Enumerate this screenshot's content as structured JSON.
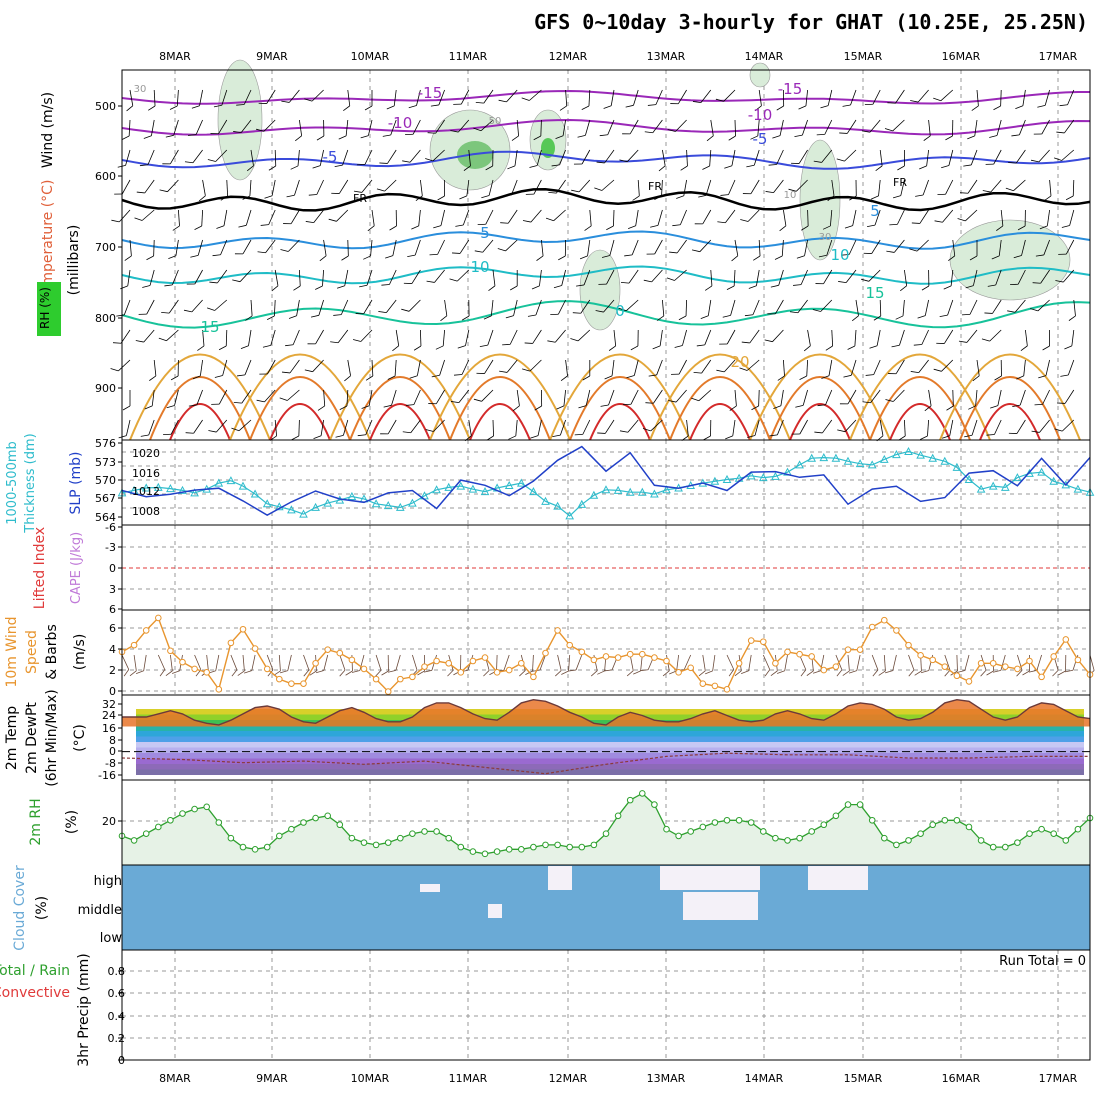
{
  "title": "GFS 0~10day 3-hourly for GHAT (10.25E, 25.25N)",
  "dates": [
    "8MAR",
    "9MAR",
    "10MAR",
    "11MAR",
    "12MAR",
    "13MAR",
    "14MAR",
    "15MAR",
    "16MAR",
    "17MAR"
  ],
  "colors": {
    "rh": "#2ea02e",
    "temp": "#e0603a",
    "wind": "#000000",
    "mb": "#3b3bd6",
    "thick": "#2fbccc",
    "slp": "#2140c8",
    "li": "#e03a3a",
    "cape": "#c07ad8",
    "speed": "#e8952e",
    "cloud": "#6aaad6",
    "precip_total": "#2ea02e",
    "precip_conv": "#e03a3a"
  },
  "panels": {
    "sounding": {
      "label_rh": "RH (%)",
      "label_temp": "Temperature (°C)",
      "label_wind": "Wind (m/s)",
      "label_mb": "(millibars)",
      "fr_label": "FR",
      "yticks": [
        "500",
        "600",
        "700",
        "800",
        "900"
      ],
      "contour_labels": [
        "-15",
        "-10",
        "-5",
        "5",
        "10",
        "15",
        "20",
        "0",
        "-15",
        "-10",
        "-5",
        "5",
        "10",
        "15",
        "30",
        "30",
        "50",
        "10"
      ]
    },
    "thickness": {
      "label_thick": "1000-500mb",
      "label_thick2": "Thickness (dm)",
      "label_slp": "SLP (mb)",
      "yticks_left": [
        "576",
        "573",
        "570",
        "567",
        "564"
      ],
      "yticks_right": [
        "1020",
        "1016",
        "1012",
        "1008"
      ]
    },
    "lifted": {
      "label_li": "Lifted Index",
      "label_cape": "CAPE (J/kg)",
      "yticks": [
        "-6",
        "-3",
        "0",
        "3",
        "6"
      ]
    },
    "wind10": {
      "label1": "10m Wind",
      "label2": "Speed",
      "label3": "& Barbs",
      "unit": "(m/s)",
      "yticks": [
        "6",
        "4",
        "2",
        "0"
      ]
    },
    "temp2m": {
      "label1": "2m Temp",
      "label2": "2m DewPt",
      "label3": "(6hr Min/Max)",
      "unit": "(°C)",
      "yticks": [
        "32",
        "24",
        "16",
        "8",
        "0",
        "-8",
        "-16"
      ]
    },
    "rh2m": {
      "label": "2m RH",
      "unit": "(%)",
      "yticks": [
        "20"
      ]
    },
    "cloud": {
      "label": "Cloud Cover",
      "unit": "(%)",
      "yticks": [
        "high",
        "middle",
        "low"
      ]
    },
    "precip": {
      "label_total": "Total / Rain",
      "label_conv": "Convective",
      "label_axis": "3hr Precip (mm)",
      "run_total": "Run Total = 0",
      "yticks": [
        "0.8",
        "0.6",
        "0.4",
        "0.2",
        "0"
      ]
    }
  },
  "chart_data": [
    {
      "type": "line",
      "name": "1000-500mb Thickness (dm)",
      "x": [
        0,
        1,
        2,
        3,
        4,
        5,
        6,
        7,
        8,
        9,
        10,
        11,
        12,
        13,
        14,
        15,
        16,
        17,
        18,
        19,
        20,
        21,
        22,
        23,
        24,
        25,
        26,
        27,
        28,
        29,
        30,
        31,
        32,
        33,
        34,
        35,
        36,
        37,
        38,
        39,
        40,
        41,
        42,
        43,
        44,
        45,
        46,
        47,
        48,
        49,
        50,
        51,
        52,
        53,
        54,
        55,
        56,
        57,
        58,
        59,
        60,
        61,
        62,
        63,
        64,
        65,
        66,
        67,
        68,
        69,
        70,
        71,
        72,
        73,
        74,
        75,
        76,
        77,
        78,
        79,
        80
      ],
      "values": [
        567.8,
        568.2,
        568.6,
        568.7,
        568.5,
        568.2,
        567.8,
        568.4,
        569.4,
        569.8,
        568.9,
        567.6,
        566.0,
        565.5,
        565.0,
        564.3,
        565.4,
        566.1,
        566.6,
        567.2,
        566.8,
        566.0,
        565.7,
        565.4,
        566.1,
        567.3,
        568.3,
        568.7,
        568.9,
        568.4,
        568.0,
        568.6,
        569.0,
        569.4,
        568.0,
        566.4,
        565.6,
        564.0,
        565.9,
        567.4,
        568.3,
        568.2,
        567.9,
        567.9,
        567.6,
        568.3,
        568.6,
        569.0,
        569.4,
        569.7,
        570.0,
        570.2,
        570.6,
        570.3,
        570.5,
        571.2,
        572.4,
        573.5,
        573.6,
        573.5,
        573.0,
        572.6,
        572.4,
        573.3,
        574.1,
        574.6,
        574.0,
        573.5,
        573.0,
        572.0,
        570.0,
        568.4,
        568.9,
        568.7,
        570.3,
        571.0,
        571.2,
        569.7,
        569.1,
        568.4,
        567.9
      ],
      "ylim": [
        562.5,
        576.5
      ]
    },
    {
      "type": "line",
      "name": "SLP (mb)",
      "x": [
        0,
        2,
        4,
        6,
        8,
        10,
        12,
        14,
        16,
        18,
        20,
        22,
        24,
        26,
        28,
        30,
        32,
        34,
        36,
        38,
        40,
        42,
        44,
        46,
        48,
        50,
        52,
        54,
        56,
        58,
        60,
        62,
        64,
        66,
        68,
        70,
        72,
        74,
        76,
        78,
        80
      ],
      "values": [
        1011.8,
        1010.5,
        1011.0,
        1011.9,
        1012.3,
        1009.6,
        1006.6,
        1009.4,
        1011.7,
        1010.0,
        1009.3,
        1011.3,
        1011.8,
        1008.0,
        1014.0,
        1012.9,
        1010.7,
        1013.8,
        1018.2,
        1021.1,
        1015.9,
        1019.8,
        1012.9,
        1012.3,
        1013.4,
        1011.8,
        1015.7,
        1015.8,
        1014.6,
        1015.1,
        1008.9,
        1012.1,
        1012.7,
        1009.5,
        1010.3,
        1015.5,
        1016.0,
        1012.8,
        1018.6,
        1013.0,
        1018.8
      ],
      "ylim": [
        1004.5,
        1022.5
      ]
    },
    {
      "type": "line",
      "name": "10m Wind Speed (m/s)",
      "x": [
        0,
        1,
        2,
        3,
        4,
        5,
        6,
        7,
        8,
        9,
        10,
        11,
        12,
        13,
        14,
        15,
        16,
        17,
        18,
        19,
        20,
        21,
        22,
        23,
        24,
        25,
        26,
        27,
        28,
        29,
        30,
        31,
        32,
        33,
        34,
        35,
        36,
        37,
        38,
        39,
        40,
        41,
        42,
        43,
        44,
        45,
        46,
        47,
        48,
        49,
        50,
        51,
        52,
        53,
        54,
        55,
        56,
        57,
        58,
        59,
        60,
        61,
        62,
        63,
        64,
        65,
        66,
        67,
        68,
        69,
        70,
        71,
        72,
        73,
        74,
        75,
        76,
        77,
        78,
        79,
        80
      ],
      "values": [
        3.8,
        4.4,
        5.7,
        6.8,
        3.9,
        2.9,
        2.3,
        2.0,
        0.5,
        4.6,
        5.8,
        4.1,
        2.3,
        1.4,
        1.0,
        1.0,
        2.8,
        4.0,
        3.7,
        3.1,
        2.3,
        1.4,
        0.3,
        1.4,
        1.6,
        2.5,
        3.0,
        2.8,
        2.0,
        3.0,
        3.3,
        2.0,
        2.2,
        2.8,
        1.6,
        3.7,
        5.7,
        4.4,
        3.8,
        3.1,
        3.4,
        3.3,
        3.6,
        3.6,
        3.3,
        3.0,
        2.0,
        2.4,
        1.0,
        0.8,
        0.5,
        2.8,
        4.8,
        4.7,
        2.8,
        3.8,
        3.6,
        3.4,
        2.2,
        2.5,
        4.0,
        4.0,
        6.0,
        6.6,
        5.7,
        4.4,
        3.5,
        3.1,
        2.5,
        1.7,
        1.2,
        2.8,
        2.8,
        2.5,
        2.3,
        3.0,
        1.6,
        3.4,
        4.9,
        3.1,
        1.8
      ],
      "ylim": [
        0,
        7.5
      ]
    },
    {
      "type": "area",
      "name": "2m Temp (°C)",
      "x": [
        0,
        1,
        2,
        3,
        4,
        5,
        6,
        7,
        8,
        9,
        10,
        11,
        12,
        13,
        14,
        15,
        16,
        17,
        18,
        19,
        20,
        21,
        22,
        23,
        24,
        25,
        26,
        27,
        28,
        29,
        30,
        31,
        32,
        33,
        34,
        35,
        36,
        37,
        38,
        39,
        40,
        41,
        42,
        43,
        44,
        45,
        46,
        47,
        48,
        49,
        50,
        51,
        52,
        53,
        54,
        55,
        56,
        57,
        58,
        59,
        60,
        61,
        62,
        63,
        64,
        65,
        66,
        67,
        68,
        69,
        70,
        71,
        72,
        73,
        74,
        75,
        76,
        77,
        78,
        79,
        80
      ],
      "values": [
        22,
        22,
        22,
        24,
        26,
        24,
        20,
        18,
        17,
        20,
        24,
        28,
        29,
        27,
        22,
        19,
        18,
        22,
        26,
        28,
        25,
        21,
        19,
        19,
        22,
        28,
        31,
        31,
        28,
        24,
        21,
        20,
        25,
        31,
        33,
        32,
        29,
        25,
        22,
        18,
        17,
        22,
        25,
        23,
        20,
        19,
        19,
        21,
        24,
        26,
        23,
        20,
        19,
        20,
        24,
        26,
        24,
        21,
        20,
        24,
        29,
        31,
        30,
        27,
        22,
        20,
        21,
        25,
        31,
        33,
        32,
        27,
        22,
        20,
        22,
        28,
        31,
        30,
        26,
        22,
        21
      ],
      "ylim": [
        -18,
        36
      ]
    },
    {
      "type": "line",
      "name": "2m DewPt (°C)",
      "x": [
        0,
        5,
        10,
        15,
        20,
        25,
        30,
        35,
        40,
        45,
        50,
        55,
        60,
        65,
        70,
        75,
        80
      ],
      "values": [
        -4,
        -5,
        -7,
        -6,
        -8,
        -6,
        -10,
        -14,
        -8,
        -3,
        -1,
        -2,
        -2,
        -4,
        -4,
        -3,
        -3
      ],
      "ylim": [
        -18,
        36
      ]
    },
    {
      "type": "area",
      "name": "2m RH (%)",
      "x": [
        0,
        1,
        2,
        3,
        4,
        5,
        6,
        7,
        8,
        9,
        10,
        11,
        12,
        13,
        14,
        15,
        16,
        17,
        18,
        19,
        20,
        21,
        22,
        23,
        24,
        25,
        26,
        27,
        28,
        29,
        30,
        31,
        32,
        33,
        34,
        35,
        36,
        37,
        38,
        39,
        40,
        41,
        42,
        43,
        44,
        45,
        46,
        47,
        48,
        49,
        50,
        51,
        52,
        53,
        54,
        55,
        56,
        57,
        58,
        59,
        60,
        61,
        62,
        63,
        64,
        65,
        66,
        67,
        68,
        69,
        70,
        71,
        72,
        73,
        74,
        75,
        76,
        77,
        78,
        79,
        80
      ],
      "values": [
        15,
        13,
        16,
        19,
        22,
        25,
        27,
        28,
        21,
        14,
        10,
        9,
        10,
        15,
        18,
        21,
        23,
        24,
        20,
        14,
        12,
        11,
        12,
        14,
        16,
        17,
        17,
        14,
        10,
        8,
        7,
        8,
        9,
        9,
        10,
        11,
        11,
        10,
        10,
        11,
        16,
        24,
        31,
        34,
        29,
        18,
        15,
        17,
        19,
        21,
        22,
        22,
        21,
        17,
        14,
        13,
        14,
        17,
        20,
        24,
        29,
        29,
        22,
        14,
        11,
        13,
        16,
        20,
        22,
        22,
        19,
        13,
        10,
        10,
        12,
        16,
        18,
        16,
        13,
        18,
        23
      ],
      "ylim": [
        2,
        40
      ]
    },
    {
      "type": "table",
      "name": "3hr Precip (mm)",
      "x": [
        "8MAR",
        "9MAR",
        "10MAR",
        "11MAR",
        "12MAR",
        "13MAR",
        "14MAR",
        "15MAR",
        "16MAR",
        "17MAR"
      ],
      "values": [
        0,
        0,
        0,
        0,
        0,
        0,
        0,
        0,
        0,
        0
      ],
      "ylim": [
        0,
        1
      ]
    }
  ]
}
